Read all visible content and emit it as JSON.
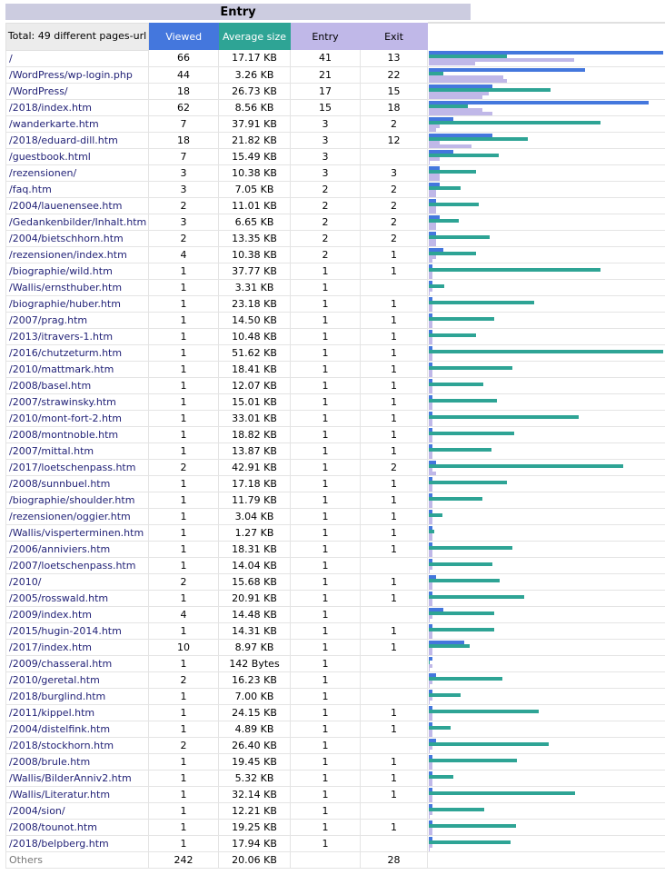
{
  "title": "Entry",
  "headers": {
    "total": "Total: 49 different pages-url",
    "viewed": "Viewed",
    "size": "Average size",
    "entry": "Entry",
    "exit": "Exit"
  },
  "colors": {
    "viewed": "#4477dd",
    "size": "#2ea495",
    "entry": "#c0b8e8",
    "exit": "#c0b8e8"
  },
  "rows": [
    {
      "url": "/",
      "viewed": "66",
      "size": "17.17 KB",
      "entry": "41",
      "exit": "13"
    },
    {
      "url": "/WordPress/wp-login.php",
      "viewed": "44",
      "size": "3.26 KB",
      "entry": "21",
      "exit": "22"
    },
    {
      "url": "/WordPress/",
      "viewed": "18",
      "size": "26.73 KB",
      "entry": "17",
      "exit": "15"
    },
    {
      "url": "/2018/index.htm",
      "viewed": "62",
      "size": "8.56 KB",
      "entry": "15",
      "exit": "18"
    },
    {
      "url": "/wanderkarte.htm",
      "viewed": "7",
      "size": "37.91 KB",
      "entry": "3",
      "exit": "2"
    },
    {
      "url": "/2018/eduard-dill.htm",
      "viewed": "18",
      "size": "21.82 KB",
      "entry": "3",
      "exit": "12"
    },
    {
      "url": "/guestbook.html",
      "viewed": "7",
      "size": "15.49 KB",
      "entry": "3",
      "exit": ""
    },
    {
      "url": "/rezensionen/",
      "viewed": "3",
      "size": "10.38 KB",
      "entry": "3",
      "exit": "3"
    },
    {
      "url": "/faq.htm",
      "viewed": "3",
      "size": "7.05 KB",
      "entry": "2",
      "exit": "2"
    },
    {
      "url": "/2004/lauenensee.htm",
      "viewed": "2",
      "size": "11.01 KB",
      "entry": "2",
      "exit": "2"
    },
    {
      "url": "/Gedankenbilder/Inhalt.htm",
      "viewed": "3",
      "size": "6.65 KB",
      "entry": "2",
      "exit": "2"
    },
    {
      "url": "/2004/bietschhorn.htm",
      "viewed": "2",
      "size": "13.35 KB",
      "entry": "2",
      "exit": "2"
    },
    {
      "url": "/rezensionen/index.htm",
      "viewed": "4",
      "size": "10.38 KB",
      "entry": "2",
      "exit": "1"
    },
    {
      "url": "/biographie/wild.htm",
      "viewed": "1",
      "size": "37.77 KB",
      "entry": "1",
      "exit": "1"
    },
    {
      "url": "/Wallis/ernsthuber.htm",
      "viewed": "1",
      "size": "3.31 KB",
      "entry": "1",
      "exit": ""
    },
    {
      "url": "/biographie/huber.htm",
      "viewed": "1",
      "size": "23.18 KB",
      "entry": "1",
      "exit": "1"
    },
    {
      "url": "/2007/prag.htm",
      "viewed": "1",
      "size": "14.50 KB",
      "entry": "1",
      "exit": "1"
    },
    {
      "url": "/2013/itravers-1.htm",
      "viewed": "1",
      "size": "10.48 KB",
      "entry": "1",
      "exit": "1"
    },
    {
      "url": "/2016/chutzeturm.htm",
      "viewed": "1",
      "size": "51.62 KB",
      "entry": "1",
      "exit": "1"
    },
    {
      "url": "/2010/mattmark.htm",
      "viewed": "1",
      "size": "18.41 KB",
      "entry": "1",
      "exit": "1"
    },
    {
      "url": "/2008/basel.htm",
      "viewed": "1",
      "size": "12.07 KB",
      "entry": "1",
      "exit": "1"
    },
    {
      "url": "/2007/strawinsky.htm",
      "viewed": "1",
      "size": "15.01 KB",
      "entry": "1",
      "exit": "1"
    },
    {
      "url": "/2010/mont-fort-2.htm",
      "viewed": "1",
      "size": "33.01 KB",
      "entry": "1",
      "exit": "1"
    },
    {
      "url": "/2008/montnoble.htm",
      "viewed": "1",
      "size": "18.82 KB",
      "entry": "1",
      "exit": "1"
    },
    {
      "url": "/2007/mittal.htm",
      "viewed": "1",
      "size": "13.87 KB",
      "entry": "1",
      "exit": "1"
    },
    {
      "url": "/2017/loetschenpass.htm",
      "viewed": "2",
      "size": "42.91 KB",
      "entry": "1",
      "exit": "2"
    },
    {
      "url": "/2008/sunnbuel.htm",
      "viewed": "1",
      "size": "17.18 KB",
      "entry": "1",
      "exit": "1"
    },
    {
      "url": "/biographie/shoulder.htm",
      "viewed": "1",
      "size": "11.79 KB",
      "entry": "1",
      "exit": "1"
    },
    {
      "url": "/rezensionen/oggier.htm",
      "viewed": "1",
      "size": "3.04 KB",
      "entry": "1",
      "exit": "1"
    },
    {
      "url": "/Wallis/visperterminen.htm",
      "viewed": "1",
      "size": "1.27 KB",
      "entry": "1",
      "exit": "1"
    },
    {
      "url": "/2006/anniviers.htm",
      "viewed": "1",
      "size": "18.31 KB",
      "entry": "1",
      "exit": "1"
    },
    {
      "url": "/2007/loetschenpass.htm",
      "viewed": "1",
      "size": "14.04 KB",
      "entry": "1",
      "exit": ""
    },
    {
      "url": "/2010/",
      "viewed": "2",
      "size": "15.68 KB",
      "entry": "1",
      "exit": "1"
    },
    {
      "url": "/2005/rosswald.htm",
      "viewed": "1",
      "size": "20.91 KB",
      "entry": "1",
      "exit": "1"
    },
    {
      "url": "/2009/index.htm",
      "viewed": "4",
      "size": "14.48 KB",
      "entry": "1",
      "exit": ""
    },
    {
      "url": "/2015/hugin-2014.htm",
      "viewed": "1",
      "size": "14.31 KB",
      "entry": "1",
      "exit": "1"
    },
    {
      "url": "/2017/index.htm",
      "viewed": "10",
      "size": "8.97 KB",
      "entry": "1",
      "exit": "1"
    },
    {
      "url": "/2009/chasseral.htm",
      "viewed": "1",
      "size": "142 Bytes",
      "entry": "1",
      "exit": ""
    },
    {
      "url": "/2010/geretal.htm",
      "viewed": "2",
      "size": "16.23 KB",
      "entry": "1",
      "exit": ""
    },
    {
      "url": "/2018/burglind.htm",
      "viewed": "1",
      "size": "7.00 KB",
      "entry": "1",
      "exit": ""
    },
    {
      "url": "/2011/kippel.htm",
      "viewed": "1",
      "size": "24.15 KB",
      "entry": "1",
      "exit": "1"
    },
    {
      "url": "/2004/distelfink.htm",
      "viewed": "1",
      "size": "4.89 KB",
      "entry": "1",
      "exit": "1"
    },
    {
      "url": "/2018/stockhorn.htm",
      "viewed": "2",
      "size": "26.40 KB",
      "entry": "1",
      "exit": ""
    },
    {
      "url": "/2008/brule.htm",
      "viewed": "1",
      "size": "19.45 KB",
      "entry": "1",
      "exit": "1"
    },
    {
      "url": "/Wallis/BilderAnniv2.htm",
      "viewed": "1",
      "size": "5.32 KB",
      "entry": "1",
      "exit": "1"
    },
    {
      "url": "/Wallis/Literatur.htm",
      "viewed": "1",
      "size": "32.14 KB",
      "entry": "1",
      "exit": "1"
    },
    {
      "url": "/2004/sion/",
      "viewed": "1",
      "size": "12.21 KB",
      "entry": "1",
      "exit": ""
    },
    {
      "url": "/2008/tounot.htm",
      "viewed": "1",
      "size": "19.25 KB",
      "entry": "1",
      "exit": "1"
    },
    {
      "url": "/2018/belpberg.htm",
      "viewed": "1",
      "size": "17.94 KB",
      "entry": "1",
      "exit": ""
    },
    {
      "url": "Others",
      "viewed": "242",
      "size": "20.06 KB",
      "entry": "",
      "exit": "28",
      "others": true
    }
  ]
}
